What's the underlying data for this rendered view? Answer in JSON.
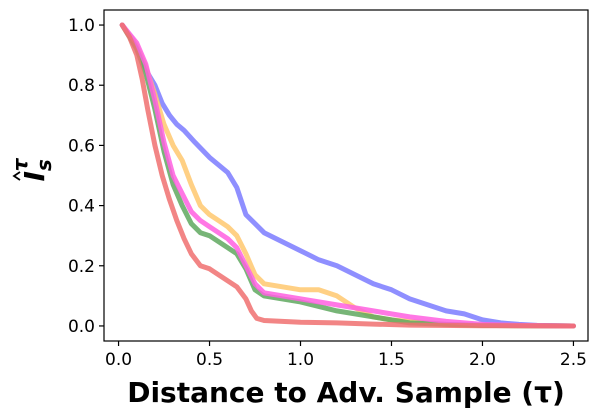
{
  "chart_data": {
    "type": "line",
    "xlabel": "Distance to Adv. Sample (τ)",
    "ylabel_main": "I",
    "ylabel_sub": "s",
    "ylabel_sup": "τ",
    "xlim": [
      -0.08,
      2.58
    ],
    "ylim": [
      -0.05,
      1.05
    ],
    "xticks": [
      0.0,
      0.5,
      1.0,
      1.5,
      2.0,
      2.5
    ],
    "xtick_labels": [
      "0.0",
      "0.5",
      "1.0",
      "1.5",
      "2.0",
      "2.5"
    ],
    "yticks": [
      0.0,
      0.2,
      0.4,
      0.6,
      0.8,
      1.0
    ],
    "ytick_labels": [
      "0.0",
      "0.2",
      "0.4",
      "0.6",
      "0.8",
      "1.0"
    ],
    "grid": false,
    "series": [
      {
        "color": "#7b7bff",
        "x": [
          0.02,
          0.08,
          0.12,
          0.16,
          0.2,
          0.24,
          0.28,
          0.32,
          0.36,
          0.42,
          0.5,
          0.6,
          0.65,
          0.7,
          0.8,
          0.9,
          1.0,
          1.1,
          1.2,
          1.3,
          1.4,
          1.5,
          1.6,
          1.7,
          1.8,
          1.9,
          2.0,
          2.1,
          2.2,
          2.3,
          2.5
        ],
        "y": [
          1.0,
          0.95,
          0.9,
          0.84,
          0.8,
          0.74,
          0.7,
          0.67,
          0.65,
          0.61,
          0.56,
          0.51,
          0.46,
          0.37,
          0.31,
          0.28,
          0.25,
          0.22,
          0.2,
          0.17,
          0.14,
          0.12,
          0.09,
          0.07,
          0.05,
          0.04,
          0.02,
          0.01,
          0.005,
          0.002,
          0.0
        ]
      },
      {
        "color": "#ffc86e",
        "x": [
          0.02,
          0.1,
          0.15,
          0.2,
          0.25,
          0.3,
          0.35,
          0.4,
          0.45,
          0.5,
          0.55,
          0.6,
          0.65,
          0.7,
          0.75,
          0.8,
          0.9,
          1.0,
          1.1,
          1.2,
          1.3,
          1.4,
          1.5,
          1.6,
          1.7,
          1.8,
          2.0,
          2.2,
          2.5
        ],
        "y": [
          1.0,
          0.93,
          0.86,
          0.77,
          0.67,
          0.6,
          0.55,
          0.47,
          0.4,
          0.37,
          0.35,
          0.33,
          0.3,
          0.24,
          0.17,
          0.14,
          0.13,
          0.12,
          0.12,
          0.1,
          0.06,
          0.03,
          0.02,
          0.015,
          0.01,
          0.005,
          0.002,
          0.001,
          0.0
        ]
      },
      {
        "color": "#5fa85f",
        "x": [
          0.02,
          0.1,
          0.15,
          0.2,
          0.25,
          0.3,
          0.35,
          0.4,
          0.45,
          0.5,
          0.55,
          0.6,
          0.65,
          0.7,
          0.75,
          0.8,
          0.9,
          1.0,
          1.2,
          1.4,
          1.6,
          1.8,
          2.0,
          2.5
        ],
        "y": [
          1.0,
          0.92,
          0.84,
          0.72,
          0.58,
          0.47,
          0.4,
          0.34,
          0.31,
          0.3,
          0.28,
          0.26,
          0.24,
          0.19,
          0.12,
          0.1,
          0.09,
          0.08,
          0.05,
          0.03,
          0.01,
          0.005,
          0.002,
          0.0
        ]
      },
      {
        "color": "#ff5fe0",
        "x": [
          0.02,
          0.1,
          0.15,
          0.2,
          0.25,
          0.3,
          0.35,
          0.4,
          0.45,
          0.5,
          0.55,
          0.6,
          0.65,
          0.7,
          0.75,
          0.8,
          0.9,
          1.0,
          1.2,
          1.4,
          1.6,
          1.8,
          2.0,
          2.2,
          2.5
        ],
        "y": [
          1.0,
          0.94,
          0.87,
          0.75,
          0.61,
          0.5,
          0.44,
          0.38,
          0.35,
          0.33,
          0.31,
          0.29,
          0.26,
          0.2,
          0.14,
          0.11,
          0.1,
          0.09,
          0.07,
          0.05,
          0.03,
          0.015,
          0.005,
          0.002,
          0.0
        ]
      },
      {
        "color": "#f07070",
        "x": [
          0.02,
          0.06,
          0.1,
          0.13,
          0.16,
          0.2,
          0.24,
          0.28,
          0.32,
          0.36,
          0.4,
          0.45,
          0.5,
          0.55,
          0.6,
          0.65,
          0.7,
          0.73,
          0.76,
          0.8,
          0.9,
          1.0,
          1.2,
          1.4,
          1.6,
          2.0,
          2.5
        ],
        "y": [
          1.0,
          0.96,
          0.9,
          0.82,
          0.72,
          0.6,
          0.5,
          0.42,
          0.35,
          0.29,
          0.24,
          0.2,
          0.19,
          0.17,
          0.15,
          0.13,
          0.09,
          0.05,
          0.025,
          0.018,
          0.015,
          0.012,
          0.01,
          0.006,
          0.003,
          0.001,
          0.0
        ]
      }
    ]
  }
}
